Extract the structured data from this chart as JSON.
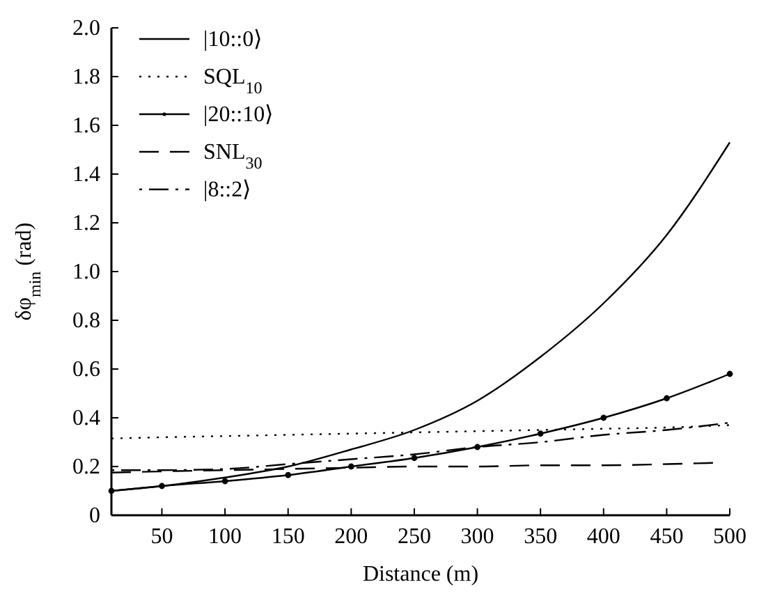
{
  "chart_data": {
    "type": "line",
    "xlabel": "Distance (m)",
    "ylabel": "δφ$_{min}$ (rad)",
    "x": [
      10,
      50,
      100,
      150,
      200,
      250,
      300,
      350,
      400,
      450,
      500
    ],
    "xlim": [
      10,
      500
    ],
    "xticks": [
      50,
      100,
      150,
      200,
      250,
      300,
      350,
      400,
      450,
      500
    ],
    "ylim": [
      0,
      2
    ],
    "yticks": [
      0,
      {
        "value": 0.2,
        "label": "0.2"
      },
      {
        "value": 0.4,
        "label": "0.4"
      },
      {
        "value": 0.6,
        "label": "0.6"
      },
      {
        "value": 0.8,
        "label": "0.8"
      },
      {
        "value": 1,
        "label": "1.0"
      },
      {
        "value": 1.2,
        "label": "1.2"
      },
      {
        "value": 1.4,
        "label": "1.4"
      },
      {
        "value": 1.6,
        "label": "1.6"
      },
      {
        "value": 1.8,
        "label": "1.8"
      },
      {
        "value": 2,
        "label": "2.0"
      }
    ],
    "legend": "top left",
    "grid": false,
    "series": [
      {
        "name": "|10::0⟩",
        "color": "#000000",
        "line_style": "solid",
        "values": [
          0.1,
          0.12,
          0.155,
          0.2,
          0.27,
          0.35,
          0.47,
          0.65,
          0.87,
          1.15,
          1.53
        ]
      },
      {
        "name": "SQL$_{10}$",
        "color": "#000000",
        "line_style": "dotted",
        "values": [
          0.315,
          0.32,
          0.325,
          0.33,
          0.335,
          0.34,
          0.345,
          0.35,
          0.355,
          0.36,
          0.37
        ]
      },
      {
        "name": "|20::10⟩",
        "color": "#000000",
        "line_style": "solid",
        "marker": "circle",
        "values": [
          0.1,
          0.12,
          0.14,
          0.165,
          0.2,
          0.235,
          0.28,
          0.335,
          0.4,
          0.48,
          0.58
        ]
      },
      {
        "name": "SNL$_{30}$",
        "color": "#000000",
        "line_style": "dashed",
        "x": [
          10,
          50,
          100,
          150,
          200,
          250,
          300,
          350,
          400,
          450,
          487
        ],
        "values": [
          0.175,
          0.18,
          0.185,
          0.19,
          0.195,
          0.2,
          0.2,
          0.205,
          0.205,
          0.21,
          0.215
        ]
      },
      {
        "name": "|8::2⟩",
        "color": "#000000",
        "line_style": "dashdot",
        "values": [
          0.185,
          0.185,
          0.19,
          0.21,
          0.23,
          0.25,
          0.28,
          0.3,
          0.33,
          0.35,
          0.38
        ]
      }
    ]
  }
}
